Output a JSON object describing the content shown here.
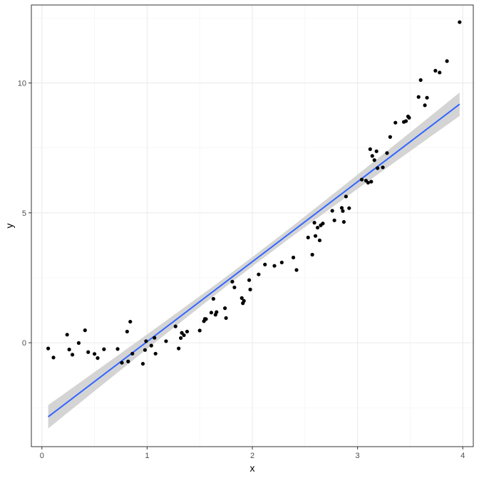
{
  "chart_data": {
    "type": "scatter",
    "title": "",
    "xlabel": "x",
    "ylabel": "y",
    "xlim": [
      -0.1,
      4.1
    ],
    "ylim": [
      -4.0,
      13.0
    ],
    "x_ticks": [
      0,
      1,
      2,
      3,
      4
    ],
    "y_ticks": [
      0,
      5,
      10
    ],
    "x_tick_labels": [
      "0",
      "1",
      "2",
      "3",
      "4"
    ],
    "y_tick_labels": [
      "0",
      "5",
      "10"
    ],
    "grid": true,
    "legend": "none",
    "colors": {
      "points": "#000000",
      "fit_line": "#3366FF",
      "confidence_band": "#CCCCCC",
      "grid_major": "#EBEBEB",
      "grid_minor": "#F2F2F2",
      "panel_border": "#333333"
    },
    "points": [
      {
        "x": 0.06,
        "y": -0.22
      },
      {
        "x": 0.11,
        "y": -0.57
      },
      {
        "x": 0.24,
        "y": 0.31
      },
      {
        "x": 0.26,
        "y": -0.26
      },
      {
        "x": 0.29,
        "y": -0.46
      },
      {
        "x": 0.35,
        "y": -0.01
      },
      {
        "x": 0.41,
        "y": 0.48
      },
      {
        "x": 0.44,
        "y": -0.36
      },
      {
        "x": 0.5,
        "y": -0.43
      },
      {
        "x": 0.53,
        "y": -0.59
      },
      {
        "x": 0.59,
        "y": -0.25
      },
      {
        "x": 0.72,
        "y": -0.24
      },
      {
        "x": 0.76,
        "y": -0.77
      },
      {
        "x": 0.81,
        "y": 0.43
      },
      {
        "x": 0.82,
        "y": -0.72
      },
      {
        "x": 0.84,
        "y": 0.81
      },
      {
        "x": 0.86,
        "y": -0.42
      },
      {
        "x": 0.96,
        "y": -0.81
      },
      {
        "x": 0.98,
        "y": -0.28
      },
      {
        "x": 0.99,
        "y": 0.06
      },
      {
        "x": 1.04,
        "y": -0.11
      },
      {
        "x": 1.07,
        "y": 0.19
      },
      {
        "x": 1.08,
        "y": -0.42
      },
      {
        "x": 1.18,
        "y": 0.06
      },
      {
        "x": 1.27,
        "y": 0.63
      },
      {
        "x": 1.3,
        "y": -0.22
      },
      {
        "x": 1.32,
        "y": 0.18
      },
      {
        "x": 1.33,
        "y": 0.38
      },
      {
        "x": 1.35,
        "y": 0.29
      },
      {
        "x": 1.38,
        "y": 0.43
      },
      {
        "x": 1.5,
        "y": 0.47
      },
      {
        "x": 1.54,
        "y": 0.83
      },
      {
        "x": 1.55,
        "y": 0.92
      },
      {
        "x": 1.56,
        "y": 0.91
      },
      {
        "x": 1.61,
        "y": 1.16
      },
      {
        "x": 1.63,
        "y": 1.69
      },
      {
        "x": 1.65,
        "y": 1.08
      },
      {
        "x": 1.66,
        "y": 1.18
      },
      {
        "x": 1.74,
        "y": 1.33
      },
      {
        "x": 1.75,
        "y": 0.95
      },
      {
        "x": 1.81,
        "y": 2.35
      },
      {
        "x": 1.83,
        "y": 2.13
      },
      {
        "x": 1.9,
        "y": 1.72
      },
      {
        "x": 1.91,
        "y": 1.52
      },
      {
        "x": 1.92,
        "y": 1.61
      },
      {
        "x": 1.97,
        "y": 2.41
      },
      {
        "x": 1.98,
        "y": 2.05
      },
      {
        "x": 2.06,
        "y": 2.63
      },
      {
        "x": 2.12,
        "y": 3.01
      },
      {
        "x": 2.21,
        "y": 2.96
      },
      {
        "x": 2.28,
        "y": 3.09
      },
      {
        "x": 2.39,
        "y": 3.28
      },
      {
        "x": 2.42,
        "y": 2.8
      },
      {
        "x": 2.53,
        "y": 4.05
      },
      {
        "x": 2.57,
        "y": 3.39
      },
      {
        "x": 2.59,
        "y": 4.62
      },
      {
        "x": 2.6,
        "y": 4.11
      },
      {
        "x": 2.62,
        "y": 4.43
      },
      {
        "x": 2.64,
        "y": 3.94
      },
      {
        "x": 2.65,
        "y": 4.52
      },
      {
        "x": 2.67,
        "y": 4.59
      },
      {
        "x": 2.76,
        "y": 5.08
      },
      {
        "x": 2.78,
        "y": 4.71
      },
      {
        "x": 2.85,
        "y": 5.19
      },
      {
        "x": 2.86,
        "y": 5.07
      },
      {
        "x": 2.87,
        "y": 4.65
      },
      {
        "x": 2.89,
        "y": 5.63
      },
      {
        "x": 2.92,
        "y": 5.18
      },
      {
        "x": 3.04,
        "y": 6.28
      },
      {
        "x": 3.08,
        "y": 6.24
      },
      {
        "x": 3.1,
        "y": 6.16
      },
      {
        "x": 3.12,
        "y": 7.45
      },
      {
        "x": 3.13,
        "y": 6.2
      },
      {
        "x": 3.14,
        "y": 7.19
      },
      {
        "x": 3.16,
        "y": 7.03
      },
      {
        "x": 3.18,
        "y": 7.37
      },
      {
        "x": 3.19,
        "y": 6.72
      },
      {
        "x": 3.24,
        "y": 6.75
      },
      {
        "x": 3.28,
        "y": 7.3
      },
      {
        "x": 3.31,
        "y": 7.92
      },
      {
        "x": 3.36,
        "y": 8.47
      },
      {
        "x": 3.44,
        "y": 8.5
      },
      {
        "x": 3.46,
        "y": 8.53
      },
      {
        "x": 3.48,
        "y": 8.71
      },
      {
        "x": 3.49,
        "y": 8.66
      },
      {
        "x": 3.58,
        "y": 9.46
      },
      {
        "x": 3.6,
        "y": 10.11
      },
      {
        "x": 3.64,
        "y": 9.14
      },
      {
        "x": 3.66,
        "y": 9.43
      },
      {
        "x": 3.74,
        "y": 10.47
      },
      {
        "x": 3.78,
        "y": 10.4
      },
      {
        "x": 3.85,
        "y": 10.84
      },
      {
        "x": 3.97,
        "y": 12.34
      }
    ],
    "fit": {
      "method": "linear regression",
      "x_range": [
        0.06,
        3.97
      ],
      "y_at_start": -2.85,
      "y_at_end": 9.18,
      "band_half_width_at_ends": 0.45,
      "band_half_width_at_center": 0.18
    }
  }
}
